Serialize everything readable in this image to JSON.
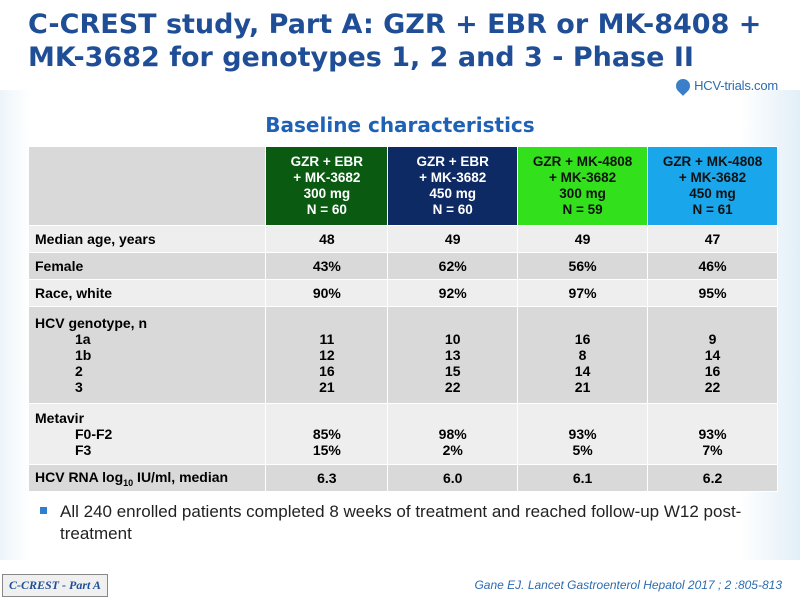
{
  "title": "C-CREST study, Part A: GZR + EBR or MK-8408 + MK-3682 for genotypes 1, 2 and 3 - Phase II",
  "logo_text": "HCV-trials.com",
  "subtitle": "Baseline characteristics",
  "columns": [
    {
      "lines": [
        "GZR + EBR",
        "+ MK-3682",
        "300 mg",
        "N = 60"
      ],
      "color": "#0a5a12",
      "text_color": "#ffffff"
    },
    {
      "lines": [
        "GZR + EBR",
        "+ MK-3682",
        "450 mg",
        "N = 60"
      ],
      "color": "#0e2a64",
      "text_color": "#ffffff"
    },
    {
      "lines": [
        "GZR + MK-4808",
        "+ MK-3682",
        "300 mg",
        "N = 59"
      ],
      "color": "#33e01c",
      "text_color": "#111111"
    },
    {
      "lines": [
        "GZR + MK-4808",
        "+ MK-3682",
        "450 mg",
        "N = 61"
      ],
      "color": "#1aa6ea",
      "text_color": "#111111"
    }
  ],
  "rows": {
    "age": {
      "label": "Median age, years",
      "values": [
        "48",
        "49",
        "49",
        "47"
      ]
    },
    "female": {
      "label": "Female",
      "values": [
        "43%",
        "62%",
        "56%",
        "46%"
      ]
    },
    "race": {
      "label": "Race, white",
      "values": [
        "90%",
        "92%",
        "97%",
        "95%"
      ]
    },
    "genotype": {
      "label": "HCV genotype, n",
      "subs": [
        "1a",
        "1b",
        "2",
        "3"
      ],
      "values": [
        [
          "11",
          "12",
          "16",
          "21"
        ],
        [
          "10",
          "13",
          "15",
          "22"
        ],
        [
          "16",
          "8",
          "14",
          "21"
        ],
        [
          "9",
          "14",
          "16",
          "22"
        ]
      ]
    },
    "metavir": {
      "label": "Metavir",
      "subs": [
        "F0-F2",
        "F3"
      ],
      "values": [
        [
          "85%",
          "15%"
        ],
        [
          "98%",
          "2%"
        ],
        [
          "93%",
          "5%"
        ],
        [
          "93%",
          "7%"
        ]
      ]
    },
    "rna": {
      "label_pre": "HCV RNA log",
      "label_sub": "10",
      "label_post": " IU/ml, median",
      "values": [
        "6.3",
        "6.0",
        "6.1",
        "6.2"
      ]
    }
  },
  "bullet": "All 240 enrolled patients completed 8 weeks of treatment and reached follow-up W12 post-treatment",
  "tag": "C-CREST - Part A",
  "reference": "Gane EJ. Lancet Gastroenterol Hepatol 2017 ; 2 :805-813"
}
